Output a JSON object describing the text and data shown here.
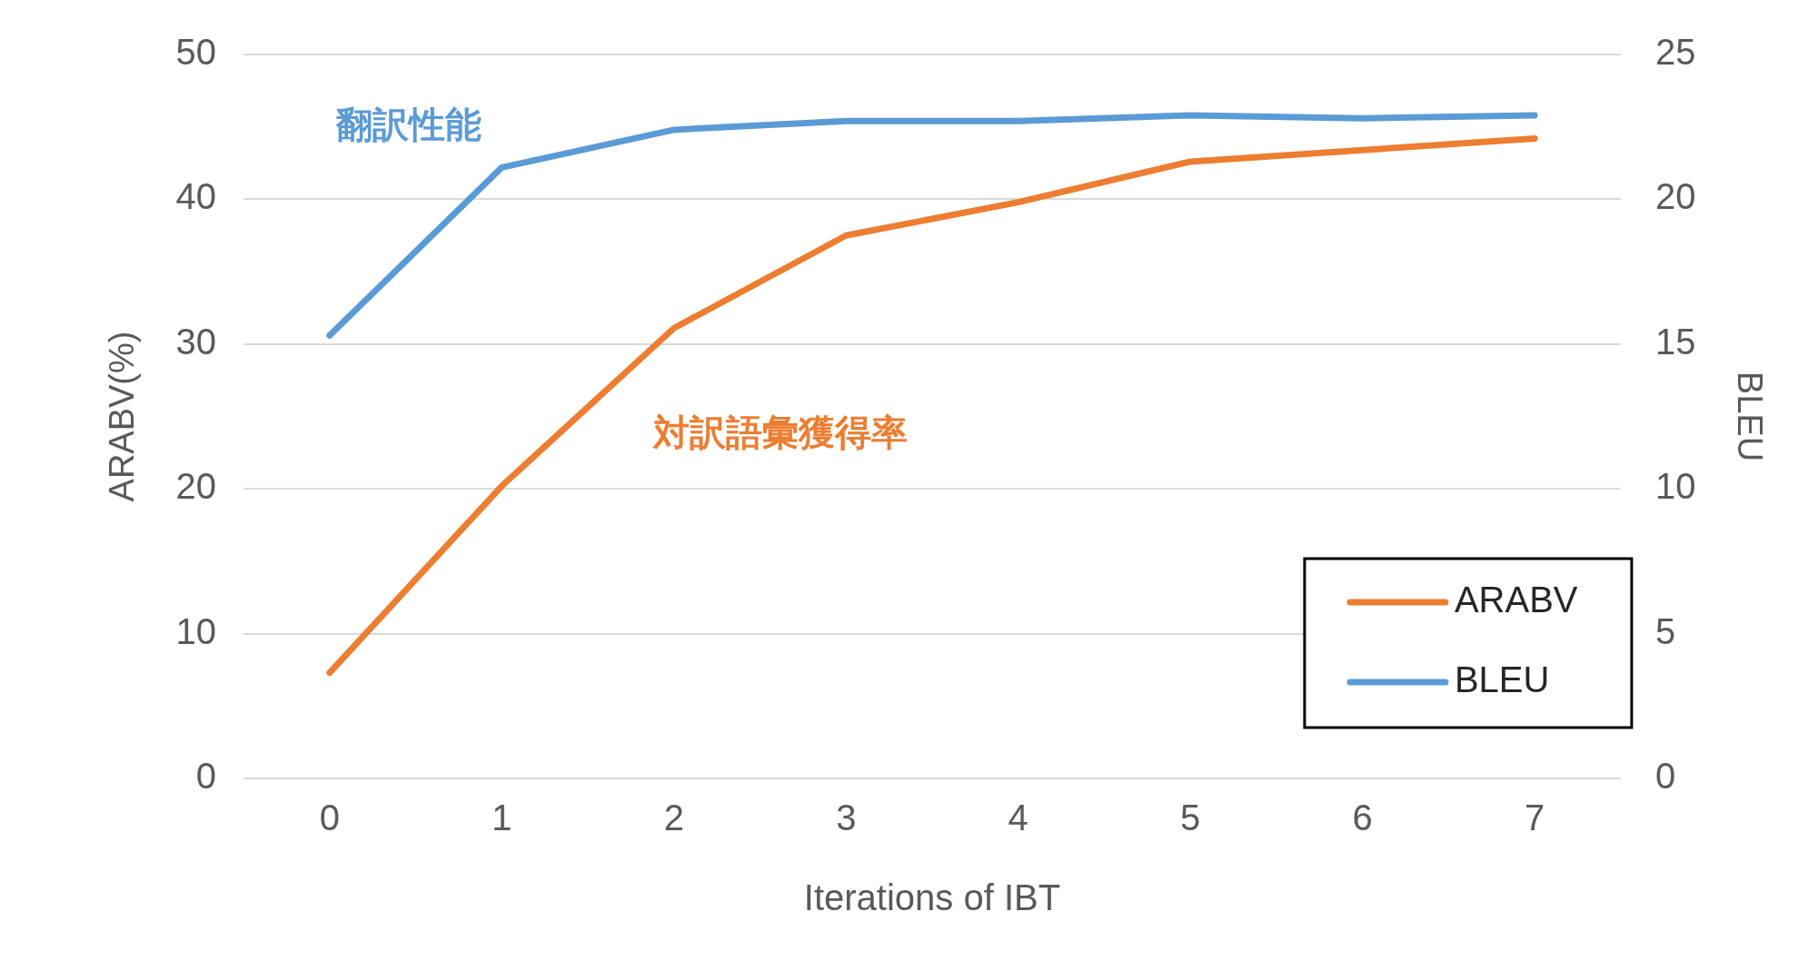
{
  "chart_data": {
    "type": "line",
    "xlabel": "Iterations of IBT",
    "ylabel": "ARABV(%)",
    "y2label": "BLEU",
    "categories": [
      "0",
      "1",
      "2",
      "3",
      "4",
      "5",
      "6",
      "7"
    ],
    "series": [
      {
        "name": "ARABV",
        "color": "#ed7d31",
        "values": [
          7.3,
          20.2,
          31.1,
          37.5,
          39.8,
          42.6,
          43.4,
          44.2
        ]
      },
      {
        "name": "BLEU",
        "color": "#5b9bd5",
        "axis": "y2",
        "values": [
          15.3,
          21.1,
          22.4,
          22.7,
          22.7,
          22.9,
          22.8,
          22.9
        ]
      }
    ],
    "ylim": [
      0,
      50
    ],
    "yticks": [
      0,
      10,
      20,
      30,
      40,
      50
    ],
    "y2lim": [
      0,
      25
    ],
    "y2ticks": [
      0,
      5,
      10,
      15,
      20,
      25
    ],
    "annotations": [
      "対訳語彙獲得率",
      "翻訳性能"
    ],
    "grid": "y",
    "legend": "bottom right",
    "marker": "none",
    "line_style": "solid"
  }
}
